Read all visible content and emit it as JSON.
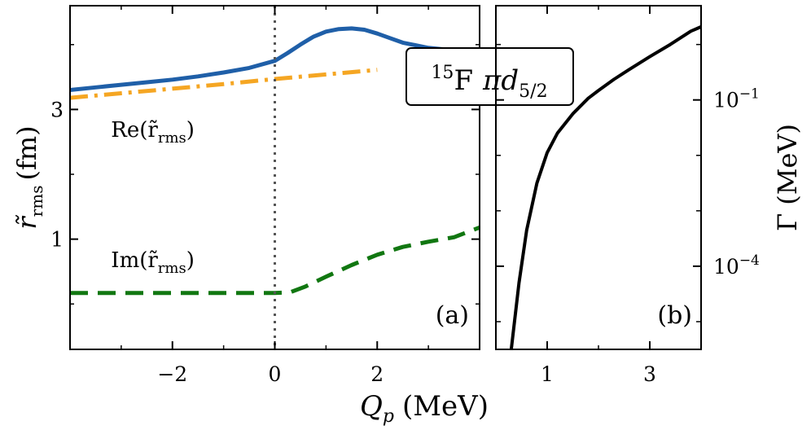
{
  "figure": {
    "shared_xlabel": "Q",
    "shared_xlabel_sub": "p",
    "shared_xlabel_unit": "(MeV)"
  },
  "chart_data": [
    {
      "type": "line",
      "panel_tag": "(a)",
      "title": "",
      "xlabel": "Q_p (MeV)",
      "ylabel_main": "r̃",
      "ylabel_sub": "rms",
      "ylabel_unit": "(fm)",
      "xlim": [
        -4.0,
        4.0
      ],
      "ylim": [
        -0.7,
        4.6
      ],
      "x_ticks": [
        -2,
        0,
        2
      ],
      "x_tick_labels": [
        "−2",
        "0",
        "2"
      ],
      "y_ticks": [
        1,
        3
      ],
      "y_tick_labels": [
        "1",
        "3"
      ],
      "vline_x": 0,
      "inset_label": {
        "main": "F",
        "sup": "15",
        "orbital": "πd",
        "orbital_sub": "5/2"
      },
      "series": [
        {
          "name": "Re(r̃rms) solid",
          "style": "solid",
          "color": "#1f5fa8",
          "x": [
            -4.0,
            -3.5,
            -3.0,
            -2.5,
            -2.0,
            -1.5,
            -1.0,
            -0.5,
            0.0,
            0.25,
            0.5,
            0.75,
            1.0,
            1.25,
            1.5,
            1.75,
            2.0,
            2.25,
            2.5,
            3.0,
            3.5,
            4.0
          ],
          "values": [
            3.3,
            3.34,
            3.38,
            3.42,
            3.46,
            3.51,
            3.57,
            3.64,
            3.75,
            3.87,
            4.0,
            4.12,
            4.2,
            4.24,
            4.25,
            4.23,
            4.17,
            4.1,
            4.03,
            3.95,
            3.91,
            3.9
          ]
        },
        {
          "name": "Re(r̃rms) dash-dot",
          "style": "dashdot",
          "color": "#f5a623",
          "x": [
            -4.0,
            -3.0,
            -2.0,
            -1.0,
            0.0,
            1.0,
            2.0
          ],
          "values": [
            3.18,
            3.25,
            3.32,
            3.39,
            3.47,
            3.54,
            3.61
          ]
        },
        {
          "name": "Im(r̃rms) dashed",
          "style": "dashed",
          "color": "#117711",
          "x": [
            -4.0,
            -3.0,
            -2.0,
            -1.0,
            0.0,
            0.3,
            0.6,
            1.0,
            1.5,
            2.0,
            2.5,
            3.0,
            3.5,
            4.0
          ],
          "values": [
            0.17,
            0.17,
            0.17,
            0.17,
            0.17,
            0.18,
            0.27,
            0.42,
            0.6,
            0.76,
            0.88,
            0.96,
            1.03,
            1.18
          ]
        }
      ],
      "annotations": [
        {
          "text": "Re(r̃",
          "sub": "rms",
          "close": ")",
          "x": -3.2,
          "y": 2.58
        },
        {
          "text": "Im(r̃",
          "sub": "rms",
          "close": ")",
          "x": -3.2,
          "y": 0.57
        }
      ]
    },
    {
      "type": "line",
      "panel_tag": "(b)",
      "title": "",
      "xlabel": "",
      "ylabel": "Γ (MeV)",
      "ylabel_symbol": "Γ",
      "ylabel_unit": "(MeV)",
      "yscale": "log",
      "xlim": [
        0.0,
        4.0
      ],
      "ylim_log10": [
        -5.5,
        0.7
      ],
      "x_ticks": [
        1,
        3
      ],
      "x_tick_labels": [
        "1",
        "3"
      ],
      "y_major_ticks_log10": [
        -4,
        -1
      ],
      "y_tick_labels": [
        {
          "base": "10",
          "exp": "−4"
        },
        {
          "base": "10",
          "exp": "−1"
        }
      ],
      "y_minor_ticks_log10": [
        -5,
        -3,
        -2,
        0
      ],
      "series": [
        {
          "name": "Γ",
          "style": "solid",
          "color": "#000000",
          "x": [
            0.3,
            0.45,
            0.6,
            0.8,
            1.0,
            1.2,
            1.5,
            1.8,
            2.0,
            2.3,
            2.6,
            3.0,
            3.4,
            3.8,
            4.0
          ],
          "log10_values": [
            -5.5,
            -4.3,
            -3.35,
            -2.5,
            -1.95,
            -1.6,
            -1.25,
            -0.97,
            -0.83,
            -0.63,
            -0.45,
            -0.22,
            0.0,
            0.24,
            0.32
          ]
        }
      ]
    }
  ]
}
